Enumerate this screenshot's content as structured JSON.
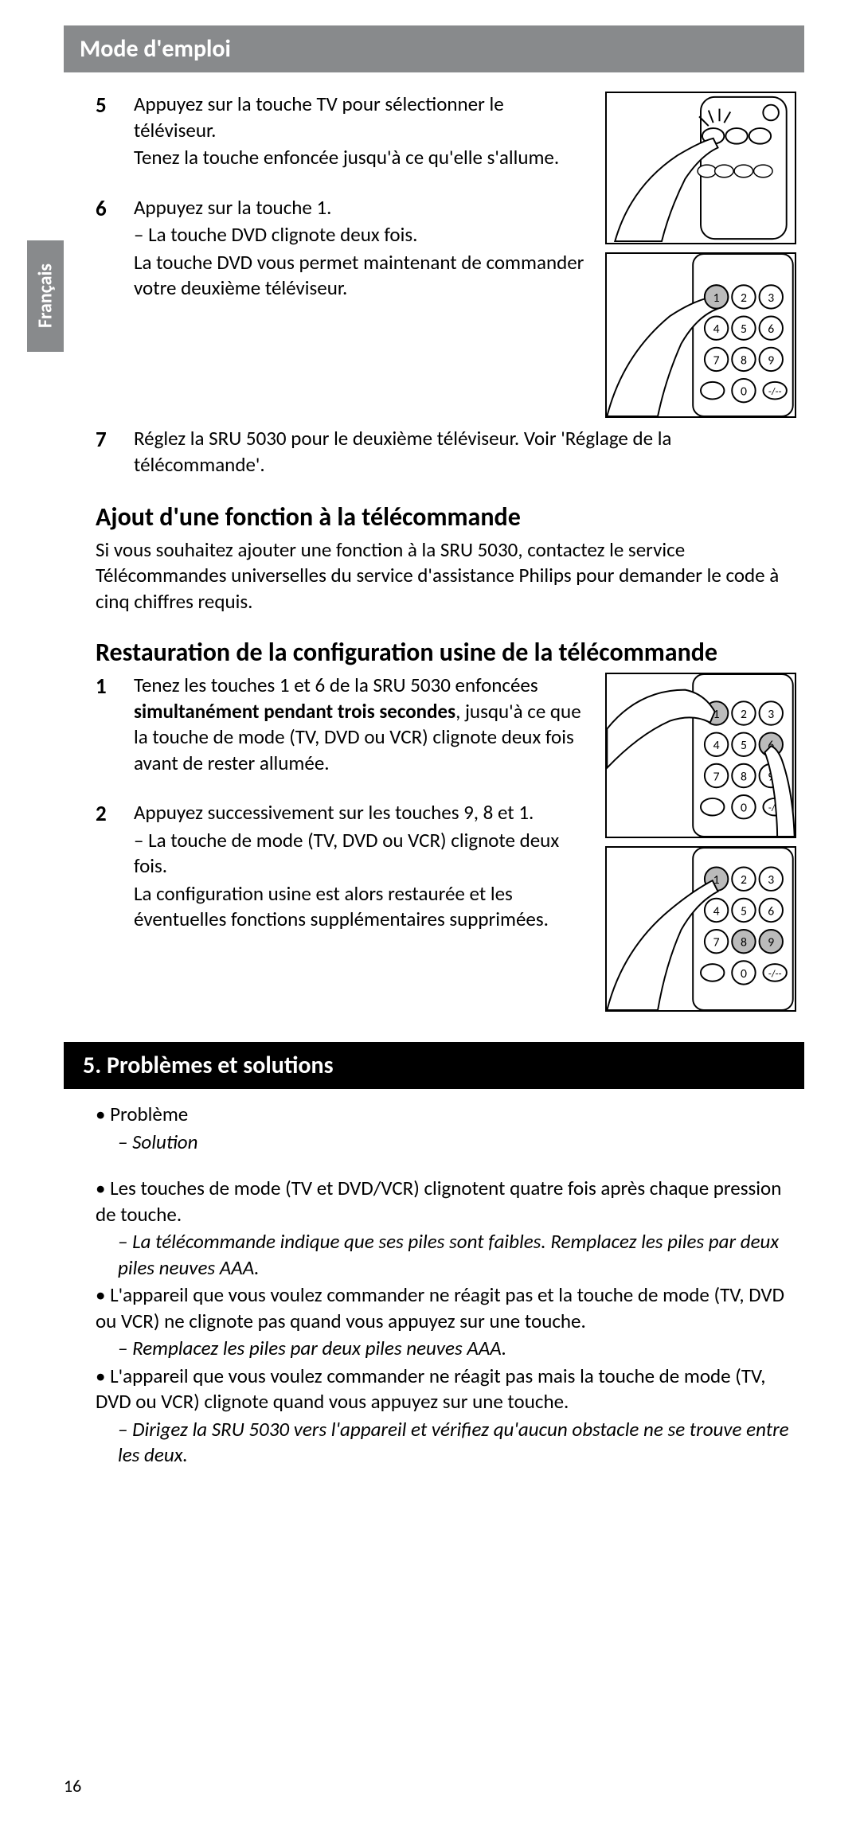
{
  "header": {
    "title": "Mode d'emploi"
  },
  "langTab": "Français",
  "steps_a": [
    {
      "num": "5",
      "lines": [
        {
          "cls": "",
          "text": "Appuyez sur la touche TV pour sélectionner le téléviseur."
        },
        {
          "cls": "",
          "text": "Tenez la touche enfoncée jusqu'à ce qu'elle s'allume."
        }
      ]
    },
    {
      "num": "6",
      "lines": [
        {
          "cls": "",
          "text": "Appuyez sur la touche 1."
        },
        {
          "cls": "sub-dash",
          "text": "La touche DVD clignote deux fois."
        },
        {
          "cls": "",
          "text": "La touche DVD vous permet maintenant de commander votre deuxième téléviseur."
        }
      ]
    }
  ],
  "step7": {
    "num": "7",
    "lines": [
      {
        "cls": "",
        "text": "Réglez la SRU 5030 pour le deuxième téléviseur. Voir 'Réglage de la télécommande'."
      }
    ]
  },
  "h_add": "Ajout d'une fonction à la télécommande",
  "p_add": "Si vous souhaitez ajouter une fonction à la SRU 5030, contactez le service Télécommandes universelles du service d'assistance Philips pour demander le code à cinq chiffres requis.",
  "h_restore": "Restauration de la configuration usine de la télécommande",
  "steps_b": [
    {
      "num": "1",
      "html": "Tenez les touches 1 et 6 de la SRU 5030 enfoncées <span class=\"bold\">simultanément pendant trois secondes</span>, jusqu'à ce que la touche de mode (TV, DVD ou VCR) clignote deux fois avant de rester allumée."
    },
    {
      "num": "2",
      "lines": [
        {
          "cls": "",
          "text": "Appuyez successivement sur les touches 9, 8 et 1."
        },
        {
          "cls": "sub-dash",
          "text": "La touche de mode (TV, DVD ou VCR) clignote deux fois."
        },
        {
          "cls": "",
          "text": "La configuration usine est alors restaurée et les éventuelles fonctions supplémentaires supprimées."
        }
      ]
    }
  ],
  "section5": {
    "title": "5. Problèmes et solutions"
  },
  "probsol": {
    "legend": [
      {
        "cls": "bullet",
        "text": "Problème"
      },
      {
        "cls": "dash",
        "text": "Solution"
      }
    ],
    "items": [
      {
        "cls": "bullet",
        "text": "Les touches de mode (TV et DVD/VCR) clignotent quatre fois après chaque pression de touche."
      },
      {
        "cls": "dash",
        "text": "La télécommande indique que ses piles sont faibles. Remplacez les piles par deux piles neuves AAA."
      },
      {
        "cls": "bullet",
        "text": "L'appareil que vous voulez commander ne réagit pas et la touche de mode (TV, DVD ou VCR) ne clignote pas quand vous appuyez sur une touche."
      },
      {
        "cls": "dash",
        "text": "Remplacez les piles par deux piles neuves AAA."
      },
      {
        "cls": "bullet",
        "text": "L'appareil que vous voulez commander ne réagit pas mais la touche de mode (TV, DVD ou VCR) clignote quand vous appuyez sur une touche."
      },
      {
        "cls": "dash",
        "text": "Dirigez la SRU 5030 vers l'appareil et vérifiez qu'aucun obstacle ne se trouve entre les deux."
      }
    ]
  },
  "pageNumber": "16",
  "colors": {
    "headerBg": "#888a8c",
    "sectionBg": "#000000",
    "text": "#000000",
    "white": "#ffffff"
  }
}
